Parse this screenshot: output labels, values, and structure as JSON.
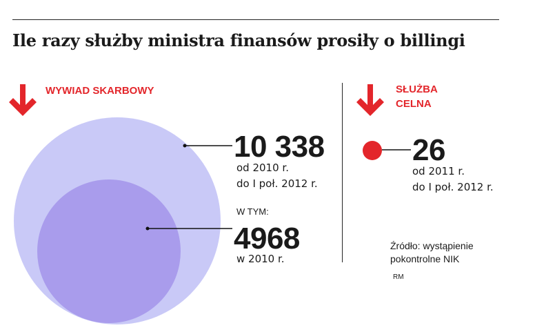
{
  "title": "Ile razy służby ministra finansów prosiły o billingi",
  "colors": {
    "accent_red": "#e3262b",
    "circle_large": "#c9c9f7",
    "circle_small": "#a99cec",
    "circle_red": "#e3262b"
  },
  "icons": {
    "arrow": "arrow-down-icon"
  },
  "chart_data": [
    {
      "type": "bubble",
      "title": "WYWIAD SKARBOWY",
      "series": [
        {
          "name": "",
          "value": 10338,
          "value_label": "10 338",
          "period_lines": [
            "od 2010 r.",
            "do I poł. 2012 r."
          ]
        },
        {
          "name": "",
          "value": 4968,
          "value_label": "4968",
          "prefix": "W TYM:",
          "period_lines": [
            "w 2010 r."
          ]
        }
      ]
    },
    {
      "type": "bubble",
      "title_lines": [
        "SŁUŻBA",
        "CELNA"
      ],
      "series": [
        {
          "name": "",
          "value": 26,
          "value_label": "26",
          "period_lines": [
            "od 2011 r.",
            "do I poł. 2012 r."
          ]
        }
      ]
    }
  ],
  "source_lines": [
    "Źródło: wystąpienie",
    "pokontrolne NIK"
  ],
  "initials": "RM"
}
